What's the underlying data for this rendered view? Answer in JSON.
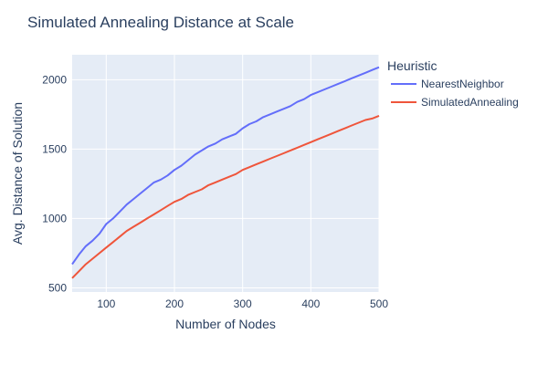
{
  "chart_data": {
    "type": "line",
    "title": "Simulated Annealing Distance at Scale",
    "xlabel": "Number of Nodes",
    "ylabel": "Avg. Distance of Solution",
    "xlim": [
      50,
      500
    ],
    "ylim": [
      470,
      2180
    ],
    "xticks": [
      100,
      200,
      300,
      400,
      500
    ],
    "yticks": [
      500,
      1000,
      1500,
      2000
    ],
    "grid": true,
    "legend": {
      "title": "Heuristic",
      "placement": "right"
    },
    "series": [
      {
        "name": "NearestNeighbor",
        "color": "#636efa",
        "x": [
          50,
          60,
          70,
          80,
          90,
          100,
          110,
          120,
          130,
          140,
          150,
          160,
          170,
          180,
          190,
          200,
          210,
          220,
          230,
          240,
          250,
          260,
          270,
          280,
          290,
          300,
          310,
          320,
          330,
          340,
          350,
          360,
          370,
          380,
          390,
          400,
          410,
          420,
          430,
          440,
          450,
          460,
          470,
          480,
          490,
          500
        ],
        "values": [
          670,
          740,
          800,
          840,
          890,
          960,
          1000,
          1050,
          1100,
          1140,
          1180,
          1220,
          1260,
          1280,
          1310,
          1350,
          1380,
          1420,
          1460,
          1490,
          1520,
          1540,
          1570,
          1590,
          1610,
          1650,
          1680,
          1700,
          1730,
          1750,
          1770,
          1790,
          1810,
          1840,
          1860,
          1890,
          1910,
          1930,
          1950,
          1970,
          1990,
          2010,
          2030,
          2050,
          2070,
          2090
        ]
      },
      {
        "name": "SimulatedAnnealing",
        "color": "#ef553b",
        "x": [
          50,
          60,
          70,
          80,
          90,
          100,
          110,
          120,
          130,
          140,
          150,
          160,
          170,
          180,
          190,
          200,
          210,
          220,
          230,
          240,
          250,
          260,
          270,
          280,
          290,
          300,
          310,
          320,
          330,
          340,
          350,
          360,
          370,
          380,
          390,
          400,
          410,
          420,
          430,
          440,
          450,
          460,
          470,
          480,
          490,
          500
        ],
        "values": [
          570,
          620,
          670,
          710,
          750,
          790,
          830,
          870,
          910,
          940,
          970,
          1000,
          1030,
          1060,
          1090,
          1120,
          1140,
          1170,
          1190,
          1210,
          1240,
          1260,
          1280,
          1300,
          1320,
          1350,
          1370,
          1390,
          1410,
          1430,
          1450,
          1470,
          1490,
          1510,
          1530,
          1550,
          1570,
          1590,
          1610,
          1630,
          1650,
          1670,
          1690,
          1710,
          1720,
          1740
        ]
      }
    ]
  }
}
